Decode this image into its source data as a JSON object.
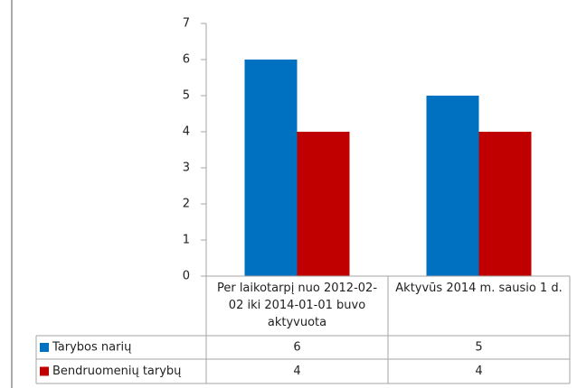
{
  "chart_data": {
    "type": "bar",
    "categories": [
      "Per laikotarpį nuo 2012-02-02 iki 2014-01-01 buvo aktyvuota",
      "Aktyvūs 2014 m. sausio 1 d."
    ],
    "series": [
      {
        "name": "Tarybos narių",
        "color": "#0070c0",
        "values": [
          6,
          5
        ]
      },
      {
        "name": "Bendruomenių tarybų",
        "color": "#c00000",
        "values": [
          4,
          4
        ]
      }
    ],
    "ylim": [
      0,
      7
    ],
    "yticks": [
      0,
      1,
      2,
      3,
      4,
      5,
      6,
      7
    ],
    "grid": false,
    "data_table": true
  }
}
